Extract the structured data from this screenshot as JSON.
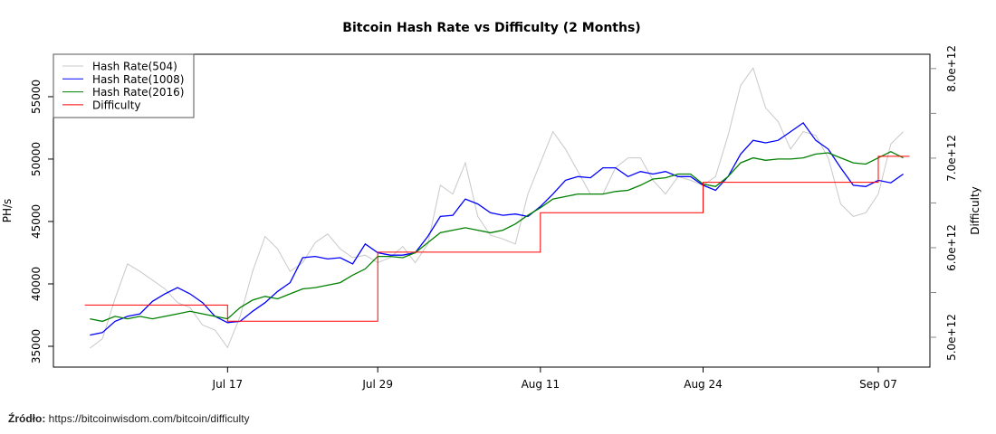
{
  "chart_data": {
    "type": "line",
    "title": "Bitcoin Hash Rate vs Difficulty (2 Months)",
    "ylabel": "PH/s",
    "ylabel_right": "Difficulty",
    "ylim": [
      33333,
      58400
    ],
    "ylim_right": [
      4667000000000.0,
      8160000000000.0
    ],
    "xlim": [
      "07-03 02:00",
      "09-11 03:00"
    ],
    "x_ticks": [
      {
        "date": "07-17",
        "label": "Jul 17"
      },
      {
        "date": "07-29",
        "label": "Jul 29"
      },
      {
        "date": "08-11",
        "label": "Aug 11"
      },
      {
        "date": "08-24",
        "label": "Aug 24"
      },
      {
        "date": "09-07",
        "label": "Sep 07"
      }
    ],
    "y_ticks": [
      "35000",
      "40000",
      "45000",
      "50000",
      "55000"
    ],
    "y_ticks_right": [
      {
        "value": 5000000000000.0,
        "label": "5.0e+12"
      },
      {
        "value": 6000000000000.0,
        "label": "6.0e+12"
      },
      {
        "value": 7000000000000.0,
        "label": "7.0e+12"
      },
      {
        "value": 8000000000000.0,
        "label": "8.0e+12"
      }
    ],
    "y_minor_ticks_right": [
      5500000000000.0,
      6500000000000.0,
      7500000000000.0
    ],
    "grid": false,
    "legend_position": "top-left",
    "dates": [
      "07-06",
      "07-07",
      "07-08",
      "07-09",
      "07-10",
      "07-11",
      "07-12",
      "07-13",
      "07-14",
      "07-15",
      "07-16",
      "07-17",
      "07-18",
      "07-19",
      "07-20",
      "07-21",
      "07-22",
      "07-23",
      "07-24",
      "07-25",
      "07-26",
      "07-27",
      "07-28",
      "07-29",
      "07-30",
      "07-31",
      "08-01",
      "08-02",
      "08-03",
      "08-04",
      "08-05",
      "08-06",
      "08-07",
      "08-08",
      "08-09",
      "08-10",
      "08-11",
      "08-12",
      "08-13",
      "08-14",
      "08-15",
      "08-16",
      "08-17",
      "08-18",
      "08-19",
      "08-20",
      "08-21",
      "08-22",
      "08-23",
      "08-24",
      "08-25",
      "08-26",
      "08-27",
      "08-28",
      "08-29",
      "08-30",
      "08-31",
      "09-01",
      "09-02",
      "09-03",
      "09-04",
      "09-05",
      "09-06",
      "09-07",
      "09-08",
      "09-09"
    ],
    "series": [
      {
        "name": "Hash Rate(504)",
        "color": "#c8c8c8",
        "axis": "left",
        "values": [
          34850,
          35600,
          38800,
          41600,
          41000,
          40300,
          39600,
          38500,
          38100,
          36700,
          36300,
          34900,
          37400,
          41000,
          43800,
          42800,
          41000,
          41700,
          43300,
          44000,
          42800,
          42100,
          42300,
          41700,
          42100,
          43000,
          41700,
          43200,
          47900,
          47200,
          49700,
          45400,
          43900,
          43600,
          43200,
          47200,
          49700,
          52200,
          50800,
          49000,
          47200,
          47200,
          49300,
          50100,
          50100,
          48300,
          47200,
          48600,
          48300,
          47900,
          48600,
          51900,
          55900,
          57300,
          54100,
          53000,
          50800,
          52200,
          51900,
          50100,
          46400,
          45400,
          45700,
          47200,
          51200,
          52200
        ]
      },
      {
        "name": "Hash Rate(1008)",
        "color": "#0000ff",
        "axis": "left",
        "values": [
          35900,
          36100,
          37000,
          37400,
          37600,
          38600,
          39200,
          39700,
          39200,
          38500,
          37400,
          36900,
          37000,
          37800,
          38500,
          39400,
          40100,
          42100,
          42200,
          42000,
          42100,
          41600,
          43200,
          42500,
          42300,
          42300,
          42500,
          43800,
          45400,
          45500,
          46800,
          46400,
          45700,
          45500,
          45600,
          45400,
          46200,
          47200,
          48300,
          48600,
          48500,
          49300,
          49300,
          48600,
          49000,
          48800,
          49000,
          48600,
          48600,
          47900,
          47500,
          48600,
          50400,
          51500,
          51300,
          51500,
          52200,
          52900,
          51500,
          50800,
          49300,
          47900,
          47800,
          48300,
          48100,
          48800
        ]
      },
      {
        "name": "Hash Rate(2016)",
        "color": "#008000",
        "axis": "left",
        "values": [
          37200,
          37000,
          37400,
          37200,
          37400,
          37200,
          37400,
          37600,
          37800,
          37600,
          37400,
          37200,
          38100,
          38700,
          39000,
          38800,
          39200,
          39600,
          39700,
          39900,
          40100,
          40700,
          41200,
          42200,
          42200,
          42100,
          42500,
          43300,
          44100,
          44300,
          44500,
          44300,
          44100,
          44300,
          44800,
          45500,
          46100,
          46800,
          47000,
          47200,
          47200,
          47200,
          47400,
          47500,
          47900,
          48400,
          48500,
          48800,
          48800,
          48000,
          47800,
          48600,
          49700,
          50100,
          49900,
          50000,
          50000,
          50100,
          50400,
          50500,
          50100,
          49700,
          49600,
          50100,
          50600,
          50100
        ]
      }
    ],
    "difficulty": {
      "name": "Difficulty",
      "color": "#ff0000",
      "axis": "right",
      "start": "07-05 14:00",
      "end": "09-09 12:00",
      "steps": [
        {
          "from": "07-05 14:00",
          "value": 5360000000000.0
        },
        {
          "from": "07-17",
          "value": 5180000000000.0
        },
        {
          "from": "07-29",
          "value": 5950000000000.0
        },
        {
          "from": "08-11",
          "value": 6390000000000.0
        },
        {
          "from": "08-24",
          "value": 6730000000000.0
        },
        {
          "from": "09-07",
          "value": 7020000000000.0
        }
      ]
    }
  },
  "source": {
    "label": "Źródło:",
    "url": "https://bitcoinwisdom.com/bitcoin/difficulty"
  }
}
